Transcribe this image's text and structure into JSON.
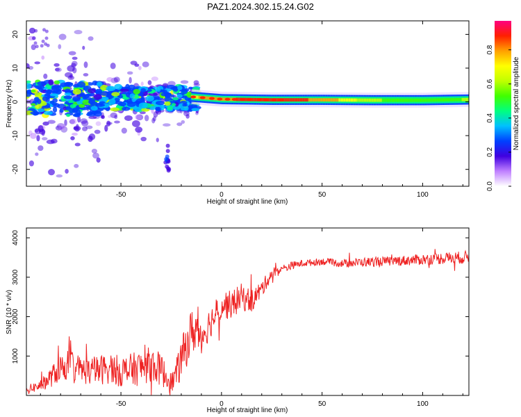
{
  "title": "PAZ1.2024.302.15.24.G02",
  "chart_data": [
    {
      "type": "heatmap",
      "xlabel": "Height of straight line (km)",
      "ylabel": "Frequency (Hz)",
      "xlim": [
        -97,
        123
      ],
      "ylim": [
        -25,
        24
      ],
      "xticks": [
        -50,
        0,
        50,
        100
      ],
      "yticks": [
        -20,
        -10,
        0,
        10,
        20
      ],
      "colorbar": {
        "label": "Normalized spectral amplitude",
        "range": [
          0,
          0.97
        ],
        "ticks": [
          "0.0",
          "0.2",
          "0.4",
          "0.6",
          "0.8"
        ],
        "colors": [
          "#ffffff",
          "#c080ff",
          "#4000e0",
          "#0040ff",
          "#00c0ff",
          "#00ff80",
          "#40ff00",
          "#c0ff00",
          "#ffff00",
          "#ffa000",
          "#ff2000",
          "#ff0080"
        ]
      },
      "ridge": {
        "description_free_text": "",
        "x": [
          -15,
          0,
          25,
          50,
          75,
          100,
          123
        ],
        "frequency_hz": [
          1.5,
          0.8,
          0.6,
          0.6,
          0.5,
          0.5,
          0.7
        ],
        "amplitude": [
          0.75,
          0.85,
          0.9,
          0.85,
          0.6,
          0.55,
          0.6
        ]
      }
    },
    {
      "type": "line",
      "xlabel": "Height of straight line (km)",
      "ylabel": "SNR (10 * v/v)",
      "xlim": [
        -97,
        123
      ],
      "ylim": [
        0,
        4250
      ],
      "xticks": [
        -50,
        0,
        50,
        100
      ],
      "yticks": [
        1000,
        2000,
        3000,
        4000
      ],
      "series": [
        {
          "color": "#ee2222",
          "x": [
            -97,
            -90,
            -85,
            -80,
            -75,
            -70,
            -65,
            -60,
            -55,
            -50,
            -45,
            -40,
            -35,
            -30,
            -25,
            -22,
            -20,
            -18,
            -15,
            -12,
            -10,
            -5,
            0,
            5,
            10,
            15,
            20,
            25,
            30,
            35,
            40,
            50,
            60,
            70,
            80,
            90,
            100,
            110,
            120,
            123
          ],
          "values": [
            150,
            250,
            450,
            700,
            800,
            650,
            600,
            650,
            700,
            600,
            650,
            700,
            800,
            650,
            300,
            600,
            900,
            1200,
            1600,
            1700,
            1500,
            1900,
            2300,
            2300,
            2500,
            2400,
            2700,
            3100,
            3200,
            3300,
            3350,
            3400,
            3350,
            3380,
            3400,
            3420,
            3450,
            3480,
            3500,
            3520
          ],
          "noise": [
            100,
            150,
            250,
            350,
            400,
            350,
            350,
            380,
            400,
            400,
            420,
            450,
            450,
            420,
            250,
            400,
            500,
            550,
            600,
            550,
            450,
            400,
            400,
            350,
            350,
            300,
            220,
            150,
            120,
            100,
            90,
            90,
            100,
            120,
            120,
            130,
            140,
            150,
            160,
            160
          ]
        }
      ]
    }
  ]
}
